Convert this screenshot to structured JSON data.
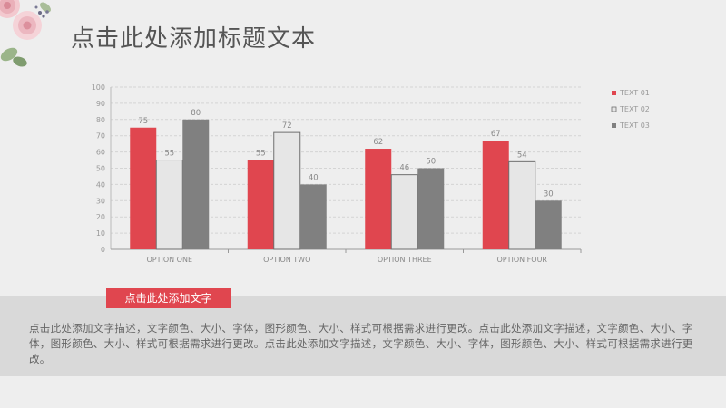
{
  "header": {
    "title": "点击此处添加标题文本"
  },
  "colors": {
    "accent": "#e0464f",
    "series1": "#e0464f",
    "series2": "#e6e6e6",
    "series3": "#808080",
    "band": "#d9d9d9"
  },
  "chart_data": {
    "type": "bar",
    "categories": [
      "OPTION ONE",
      "OPTION TWO",
      "OPTION THREE",
      "OPTION FOUR"
    ],
    "series": [
      {
        "name": "TEXT 01",
        "values": [
          75,
          55,
          62,
          67
        ]
      },
      {
        "name": "TEXT 02",
        "values": [
          55,
          72,
          46,
          54
        ]
      },
      {
        "name": "TEXT 03",
        "values": [
          80,
          40,
          50,
          30
        ]
      }
    ],
    "ylim": [
      0,
      100
    ],
    "yticks": [
      0,
      10,
      20,
      30,
      40,
      50,
      60,
      70,
      80,
      90,
      100
    ],
    "grid": true,
    "legend_position": "right"
  },
  "footer": {
    "subtitle": "点击此处添加文字",
    "description": "点击此处添加文字描述，文字颜色、大小、字体，图形颜色、大小、样式可根据需求进行更改。点击此处添加文字描述，文字颜色、大小、字体，图形颜色、大小、样式可根据需求进行更改。点击此处添加文字描述，文字颜色、大小、字体，图形颜色、大小、样式可根据需求进行更改。"
  }
}
